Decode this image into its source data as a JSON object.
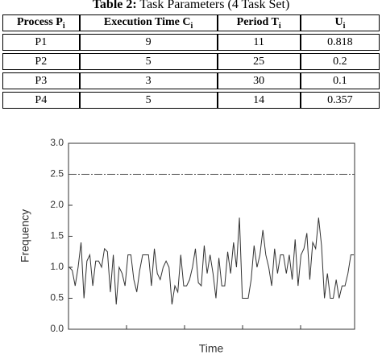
{
  "table": {
    "caption_label": "Table 2:",
    "caption": "Task Parameters (4 Task Set)",
    "header": [
      {
        "text": "Process P",
        "sub": "i"
      },
      {
        "text": "Execution Time C",
        "sub": "i"
      },
      {
        "text": "Period T",
        "sub": "i"
      },
      {
        "text": "U",
        "sub": "i"
      }
    ],
    "rows": [
      [
        "P1",
        "9",
        "11",
        "0.818"
      ],
      [
        "P2",
        "5",
        "25",
        "0.2"
      ],
      [
        "P3",
        "3",
        "30",
        "0.1"
      ],
      [
        "P4",
        "5",
        "14",
        "0.357"
      ]
    ]
  },
  "chart_data": {
    "type": "line",
    "xlabel": "Time",
    "ylabel": "Frequency",
    "color": "#333333",
    "ylim": [
      0,
      3
    ],
    "yticks": [
      {
        "value": 0,
        "label": "0.0"
      },
      0.5,
      {
        "value": 1,
        "label": "1.0"
      },
      1.5,
      {
        "value": 2,
        "label": "2.0"
      },
      2.5,
      {
        "value": 3,
        "label": "3.0"
      }
    ],
    "reference_line": 2.5,
    "values": [
      1.0,
      0.95,
      0.7,
      1.0,
      1.4,
      0.5,
      1.1,
      1.2,
      0.7,
      1.1,
      1.1,
      1.0,
      1.3,
      1.25,
      0.6,
      1.2,
      0.4,
      1.0,
      0.9,
      0.7,
      1.2,
      1.2,
      0.8,
      0.6,
      0.95,
      1.2,
      1.2,
      1.2,
      0.7,
      1.3,
      0.9,
      0.8,
      1.0,
      1.1,
      1.0,
      0.4,
      0.7,
      0.6,
      1.2,
      0.7,
      0.7,
      0.8,
      1.0,
      1.3,
      0.75,
      0.7,
      1.35,
      0.9,
      1.2,
      0.9,
      0.5,
      1.15,
      0.7,
      0.7,
      1.25,
      0.9,
      1.4,
      1.0,
      1.8,
      0.5,
      0.5,
      0.5,
      0.8,
      1.35,
      1.0,
      1.2,
      1.6,
      1.2,
      1.0,
      0.7,
      1.3,
      0.9,
      1.2,
      1.2,
      0.9,
      1.2,
      0.8,
      1.45,
      0.7,
      1.2,
      1.3,
      1.55,
      0.8,
      1.4,
      1.3,
      1.8,
      1.35,
      0.5,
      0.9,
      0.5,
      0.5,
      0.8,
      0.5,
      0.7,
      0.7,
      0.9,
      1.2,
      1.2
    ]
  }
}
